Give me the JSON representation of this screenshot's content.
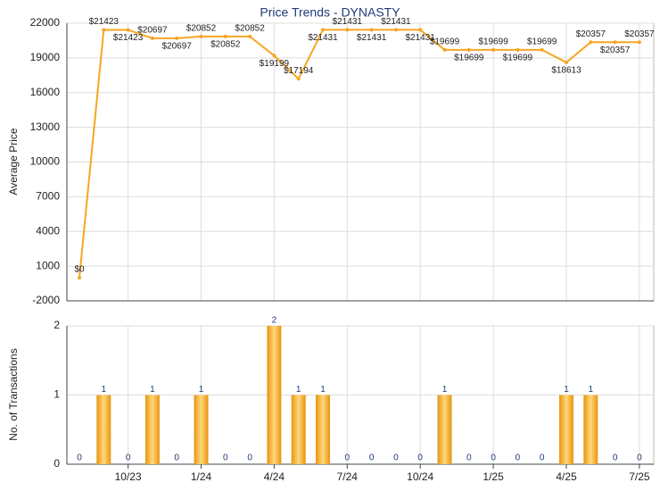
{
  "chart_data": [
    {
      "type": "line",
      "title": "Price Trends - DYNASTY",
      "y_label": "Average Price",
      "color": "#f5a623",
      "grid": true,
      "ylim": [
        -2000,
        22000
      ],
      "yticks": [
        -2000,
        1000,
        4000,
        7000,
        10000,
        13000,
        16000,
        19000,
        22000
      ],
      "values": [
        0,
        21423,
        21423,
        20697,
        20697,
        20852,
        20852,
        20852,
        19199,
        17194,
        21431,
        21431,
        21431,
        21431,
        21431,
        19699,
        19699,
        19699,
        19699,
        19699,
        18613,
        20357,
        20357,
        20357
      ],
      "value_labels": [
        "$0",
        "$21423",
        "$21423",
        "$20697",
        "$20697",
        "$20852",
        "$20852",
        "$20852",
        "$19199",
        "$17194",
        "$21431",
        "$21431",
        "$21431",
        "$21431",
        "$21431",
        "$19699",
        "$19699",
        "$19699",
        "$19699",
        "$19699",
        "$18613",
        "$20357",
        "$20357",
        "$20357"
      ]
    },
    {
      "type": "bar",
      "y_label": "No. of Transactions",
      "color": "#f5a623",
      "grid": true,
      "ylim": [
        0,
        2
      ],
      "yticks": [
        0,
        1,
        2
      ],
      "categories": [
        null,
        null,
        "10/23",
        null,
        null,
        "1/24",
        null,
        null,
        "4/24",
        null,
        null,
        "7/24",
        null,
        null,
        "10/24",
        null,
        null,
        "1/25",
        null,
        null,
        "4/25",
        null,
        null,
        "7/25"
      ],
      "values": [
        0,
        1,
        0,
        1,
        0,
        1,
        0,
        0,
        2,
        1,
        1,
        0,
        0,
        0,
        0,
        1,
        0,
        0,
        0,
        0,
        1,
        1,
        0,
        0
      ]
    }
  ]
}
